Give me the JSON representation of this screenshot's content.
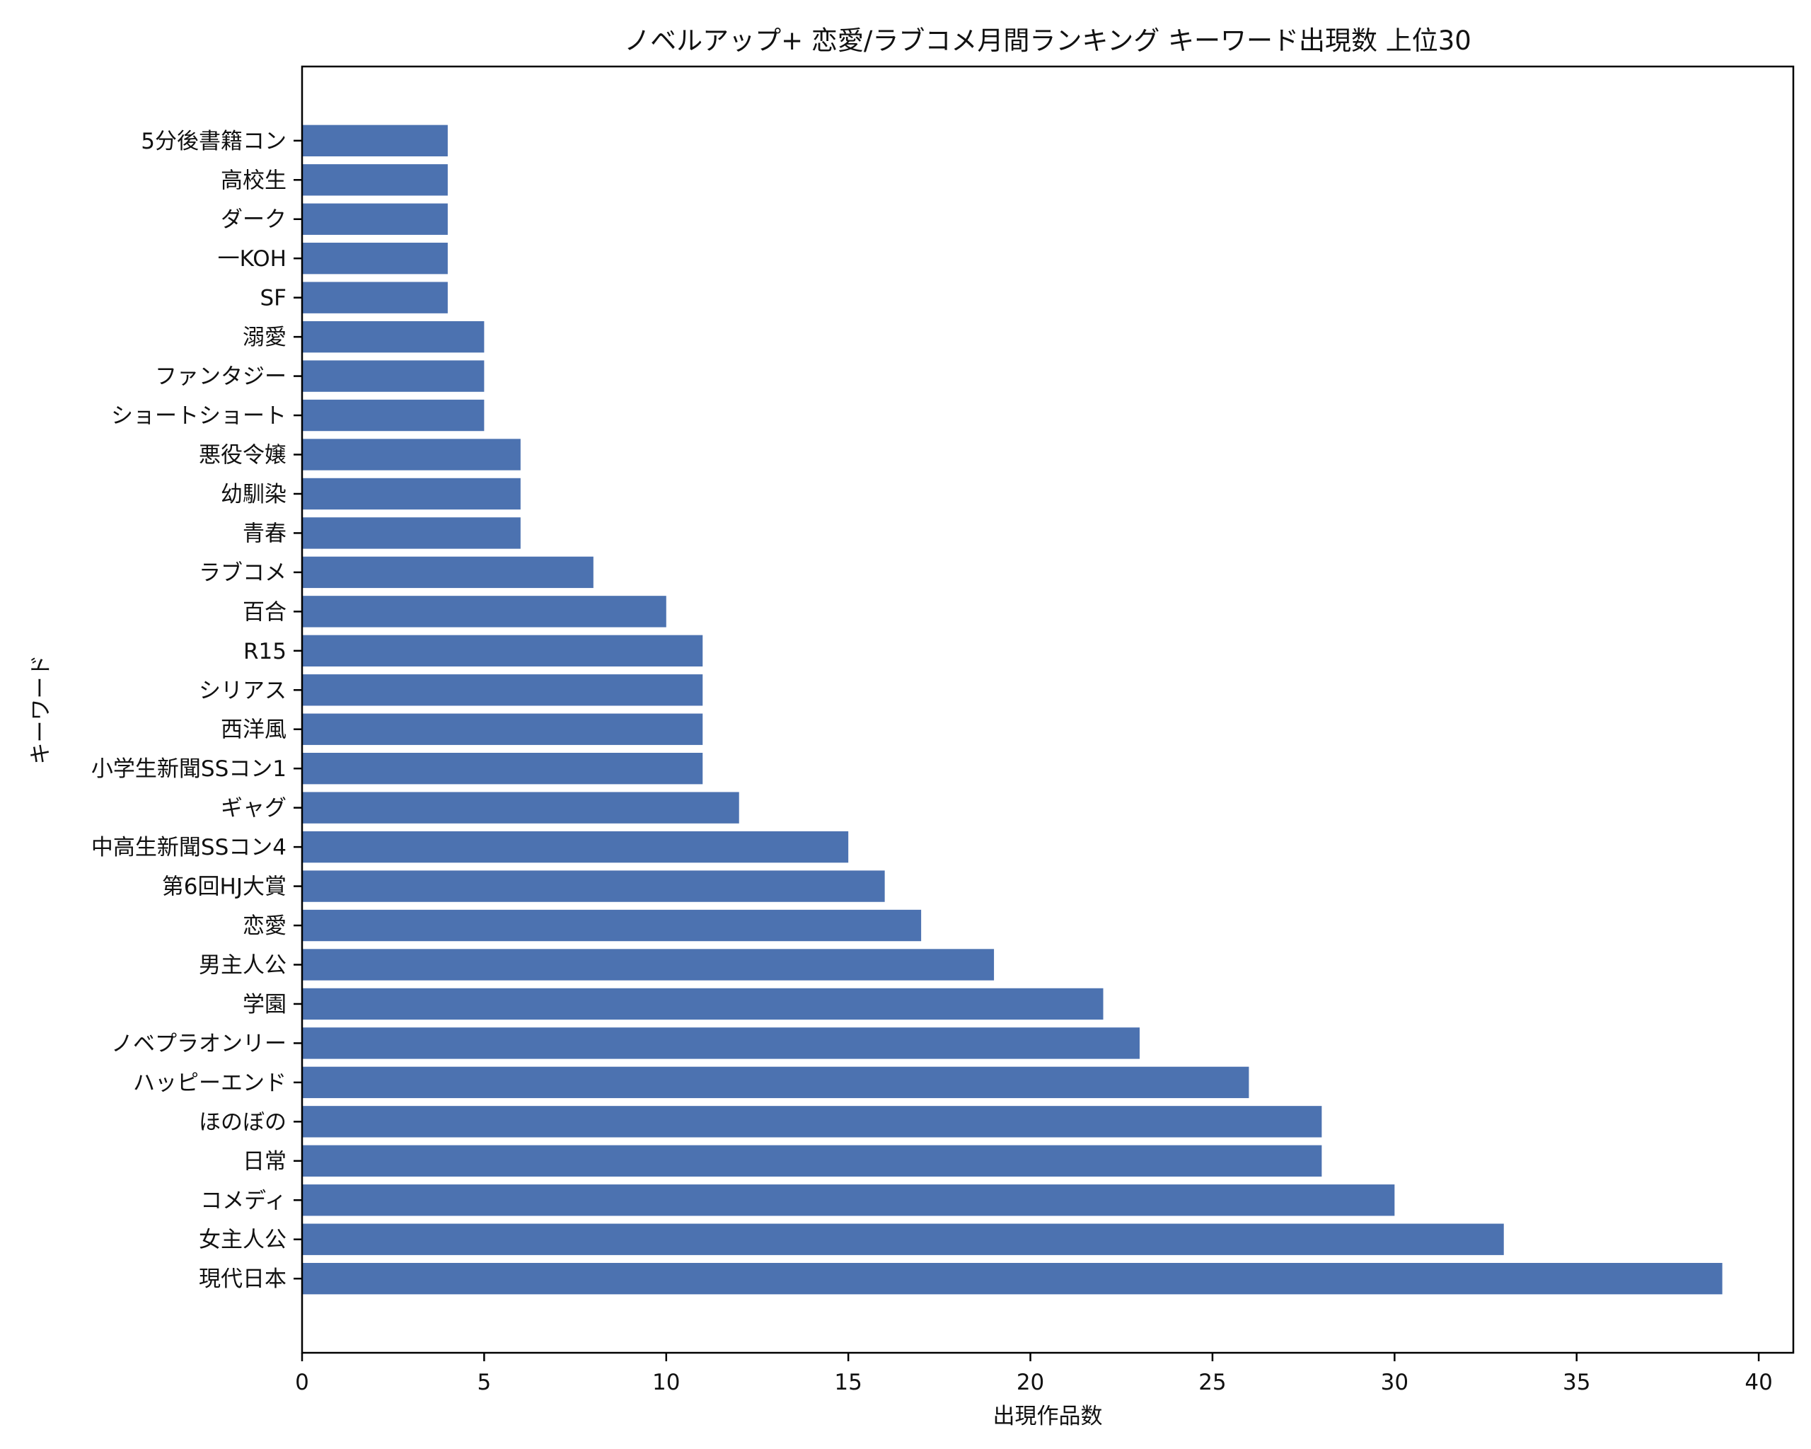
{
  "chart_data": {
    "type": "bar",
    "orientation": "horizontal",
    "title": "ノベルアップ+ 恋愛/ラブコメ月間ランキング キーワード出現数 上位30",
    "xlabel": "出現作品数",
    "ylabel": "キーワード",
    "xlim": [
      0,
      40.95
    ],
    "xticks": [
      0,
      5,
      10,
      15,
      20,
      25,
      30,
      35,
      40
    ],
    "grid": false,
    "bar_color": "#4c72b0",
    "categories": [
      "現代日本",
      "女主人公",
      "コメディ",
      "日常",
      "ほのぼの",
      "ハッピーエンド",
      "ノベプラオンリー",
      "学園",
      "男主人公",
      "恋愛",
      "第6回HJ大賞",
      "中高生新聞SSコン4",
      "ギャグ",
      "小学生新聞SSコン1",
      "西洋風",
      "シリアス",
      "R15",
      "百合",
      "ラブコメ",
      "青春",
      "幼馴染",
      "悪役令嬢",
      "ショートショート",
      "ファンタジー",
      "溺愛",
      "SF",
      "一KOH",
      "ダーク",
      "高校生",
      "5分後書籍コン"
    ],
    "values": [
      39,
      33,
      30,
      28,
      28,
      26,
      23,
      22,
      19,
      17,
      16,
      15,
      12,
      11,
      11,
      11,
      11,
      10,
      8,
      6,
      6,
      6,
      5,
      5,
      5,
      4,
      4,
      4,
      4,
      4
    ]
  }
}
